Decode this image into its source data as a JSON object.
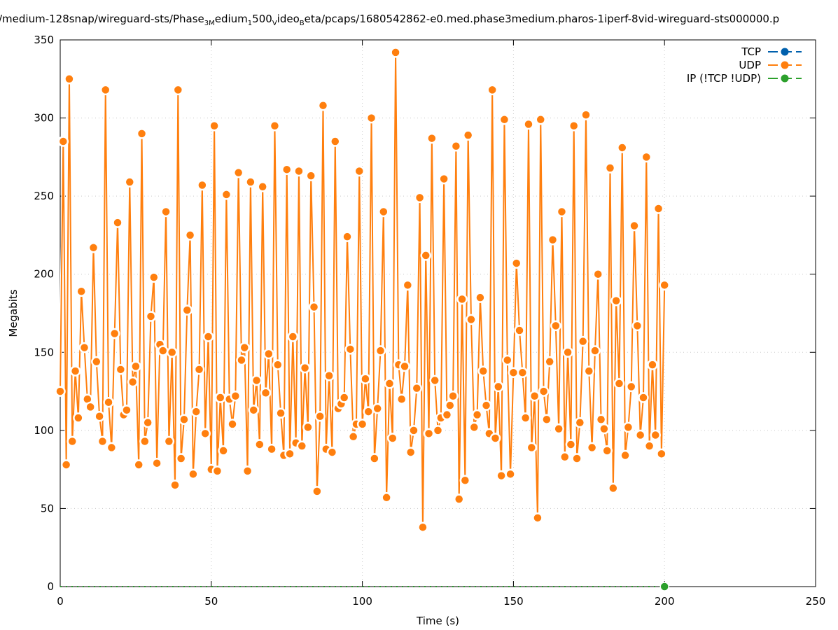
{
  "chart_data": {
    "type": "line",
    "title_parts": [
      "/medium-128snap/wireguard-sts/Phase",
      "3M",
      "edium",
      "1",
      "500",
      "V",
      "ideo",
      "B",
      "eta/pcaps/1680542862-e0.med.phase3medium.pharos-1iperf-8vid-wireguard-sts000000.p"
    ],
    "xlabel": "Time (s)",
    "ylabel": "Megabits",
    "xlim": [
      0,
      250
    ],
    "ylim": [
      0,
      350
    ],
    "xticks": [
      0,
      50,
      100,
      150,
      200,
      250
    ],
    "yticks": [
      0,
      50,
      100,
      150,
      200,
      250,
      300,
      350
    ],
    "grid": true,
    "legend_position": "top-right",
    "series": [
      {
        "name": "TCP",
        "color": "#0060ad",
        "x": [],
        "values": []
      },
      {
        "name": "UDP",
        "color": "#ff7f0e",
        "x_start": 0,
        "x_step": 1,
        "values": [
          125,
          285,
          78,
          325,
          93,
          138,
          108,
          189,
          153,
          120,
          115,
          217,
          144,
          109,
          93,
          318,
          118,
          89,
          162,
          233,
          139,
          110,
          113,
          259,
          131,
          141,
          78,
          290,
          93,
          105,
          173,
          198,
          79,
          155,
          151,
          240,
          93,
          150,
          65,
          318,
          82,
          107,
          177,
          225,
          72,
          112,
          139,
          257,
          98,
          160,
          75,
          295,
          74,
          121,
          87,
          251,
          120,
          104,
          122,
          265,
          145,
          153,
          74,
          259,
          113,
          132,
          91,
          256,
          124,
          149,
          88,
          295,
          142,
          111,
          84,
          267,
          85,
          160,
          92,
          266,
          90,
          140,
          102,
          263,
          179,
          61,
          109,
          308,
          88,
          135,
          86,
          285,
          114,
          117,
          121,
          224,
          152,
          96,
          104,
          266,
          104,
          133,
          112,
          300,
          82,
          114,
          151,
          240,
          57,
          130,
          95,
          342,
          142,
          120,
          141,
          193,
          86,
          100,
          127,
          249,
          38,
          212,
          98,
          287,
          132,
          100,
          108,
          261,
          110,
          116,
          122,
          282,
          56,
          184,
          68,
          289,
          171,
          102,
          110,
          185,
          138,
          116,
          98,
          318,
          95,
          128,
          71,
          299,
          145,
          72,
          137,
          207,
          164,
          137,
          108,
          296,
          89,
          122,
          44,
          299,
          125,
          107,
          144,
          222,
          167,
          101,
          240,
          83,
          150,
          91,
          295,
          82,
          105,
          157,
          302,
          138,
          89,
          151,
          200,
          107,
          101,
          87,
          268,
          63,
          183,
          130,
          281,
          84,
          102,
          128,
          231,
          167,
          97,
          121,
          275,
          90,
          142,
          97,
          242,
          85,
          193
        ]
      },
      {
        "name": "IP (!TCP  !UDP)",
        "color": "#2ca02c",
        "x": [
          200
        ],
        "values": [
          0
        ],
        "zero_line_to": 200
      }
    ]
  }
}
